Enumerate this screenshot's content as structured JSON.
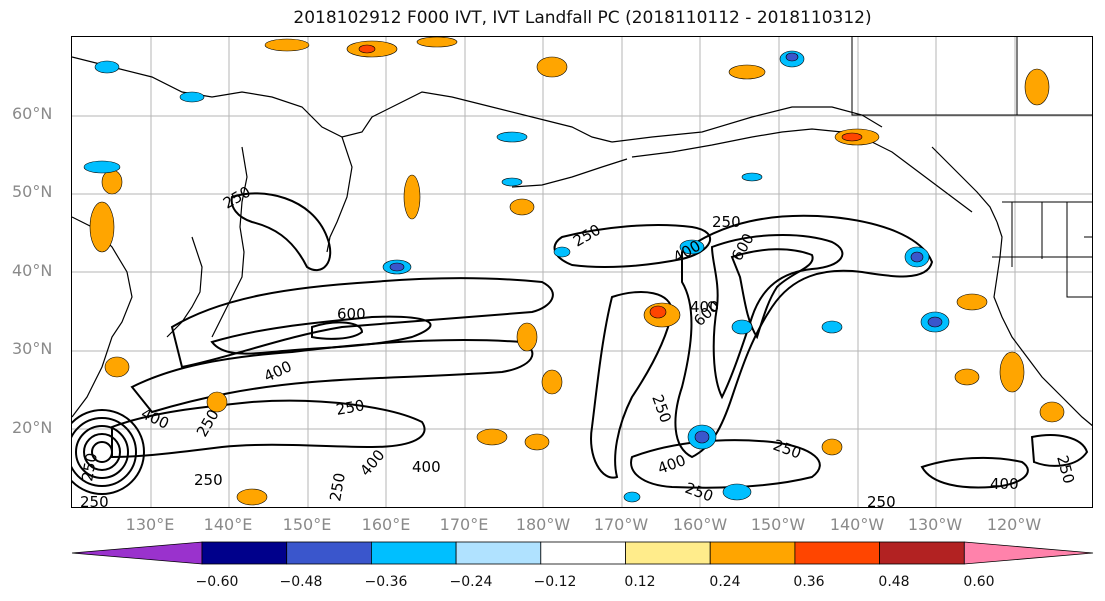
{
  "title": "2018102912 F000 IVT, IVT Landfall PC (2018110112 - 2018110312)",
  "lat_labels": [
    "60°N",
    "50°N",
    "40°N",
    "30°N",
    "20°N"
  ],
  "lon_labels": [
    "130°E",
    "140°E",
    "150°E",
    "160°E",
    "170°E",
    "180°W",
    "170°W",
    "160°W",
    "150°W",
    "140°W",
    "130°W",
    "120°W"
  ],
  "colorbar": {
    "colors": [
      "#9a32cd",
      "#00008b",
      "#3a56cc",
      "#00bfff",
      "#b0e2ff",
      "#ffffff",
      "#ffec8b",
      "#ffa500",
      "#ff4500",
      "#b22222",
      "#ff82ab"
    ],
    "tick_labels": [
      "−0.60",
      "−0.48",
      "−0.36",
      "−0.24",
      "−0.12",
      "0.12",
      "0.24",
      "0.36",
      "0.48",
      "0.60"
    ]
  },
  "contour_labels": [
    "250",
    "250",
    "250",
    "600",
    "400",
    "400",
    "250",
    "400",
    "250",
    "400",
    "250",
    "250",
    "600",
    "400",
    "250",
    "600",
    "400",
    "400",
    "250",
    "250",
    "250",
    "250",
    "400",
    "250",
    "250"
  ]
}
